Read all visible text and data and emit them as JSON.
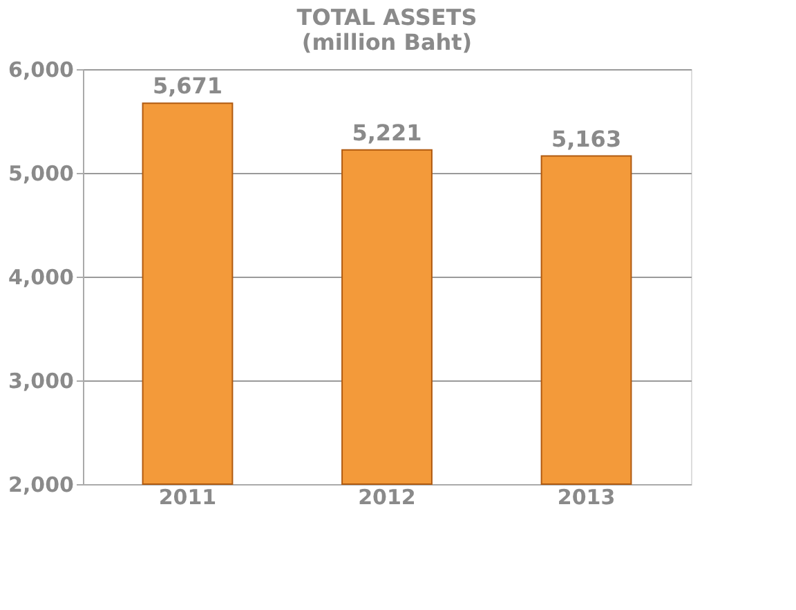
{
  "chart_data": {
    "type": "bar",
    "title": "TOTAL ASSETS",
    "subtitle": "(million Baht)",
    "categories": [
      "2011",
      "2012",
      "2013"
    ],
    "values": [
      5671,
      5221,
      5163
    ],
    "color": "#f39a3a",
    "value_labels": [
      "5,671",
      "5,221",
      "5,163"
    ],
    "ylim": [
      2000,
      6000
    ],
    "yticks": [
      {
        "value": 2000,
        "label": "2,000"
      },
      {
        "value": 3000,
        "label": "3,000"
      },
      {
        "value": 4000,
        "label": "4,000"
      },
      {
        "value": 5000,
        "label": "5,000"
      },
      {
        "value": 6000,
        "label": "6,000"
      }
    ],
    "grid": "y"
  }
}
